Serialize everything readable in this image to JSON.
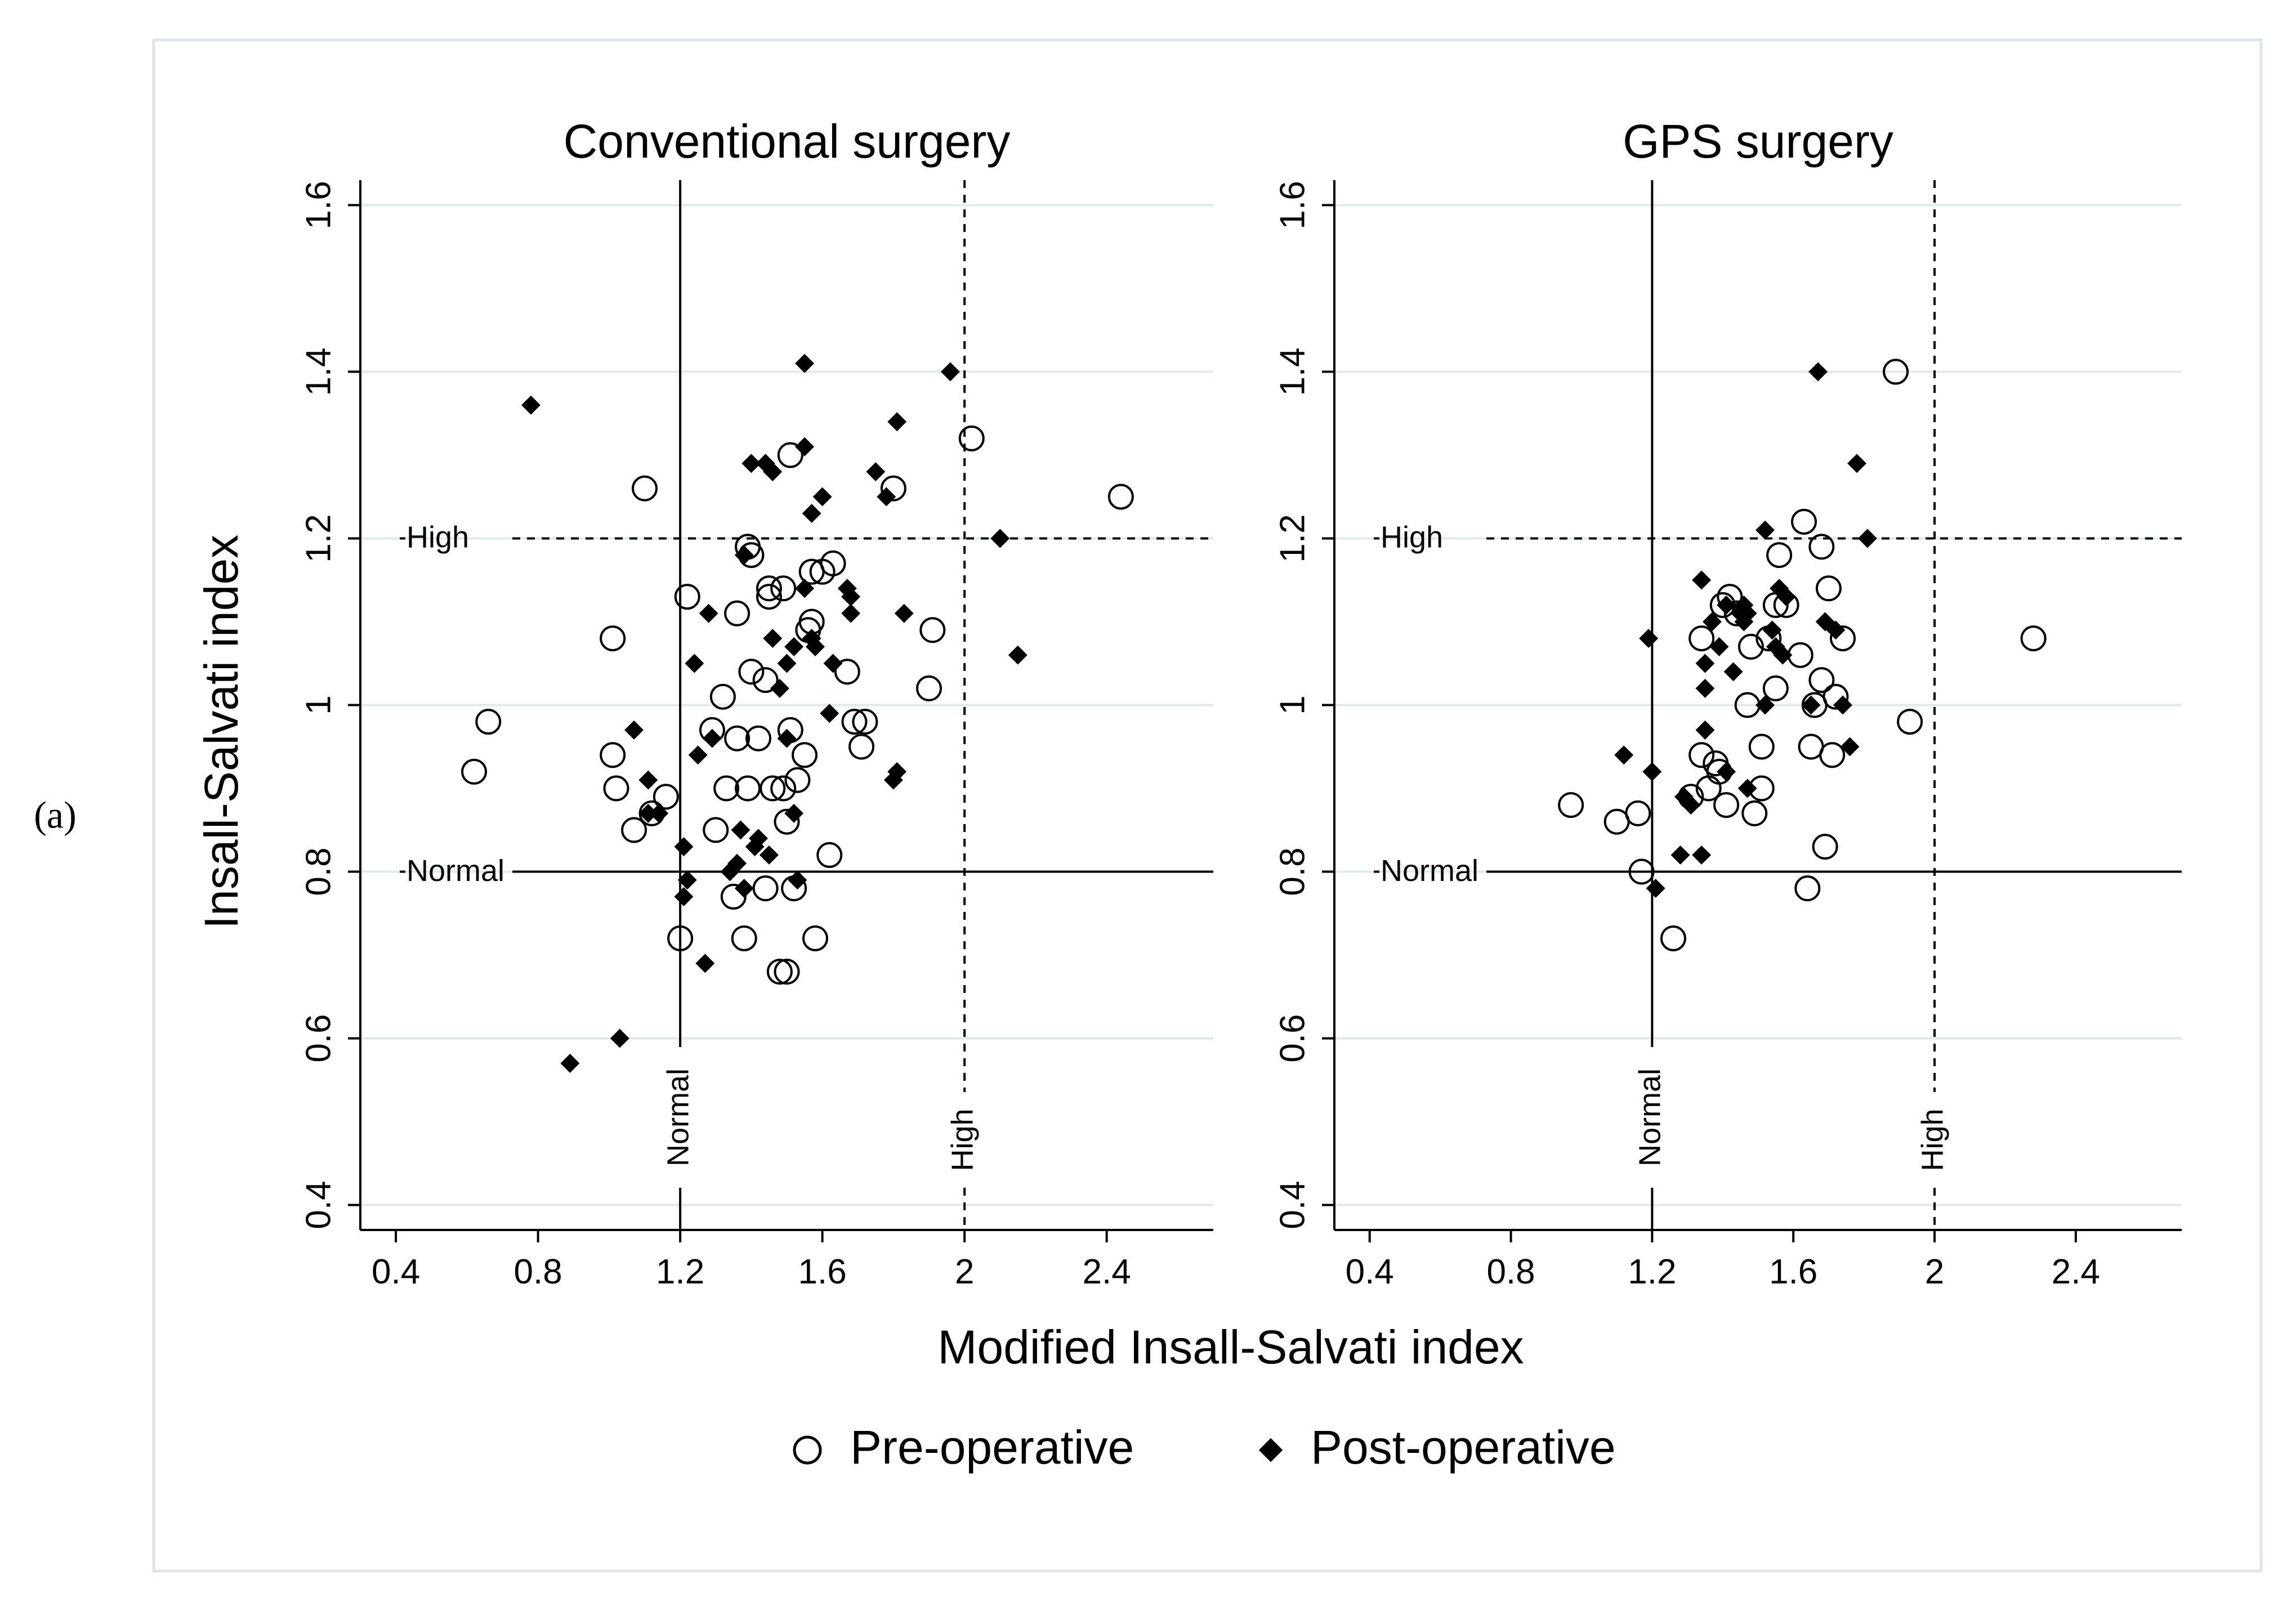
{
  "figure": {
    "panel_label": "(a)",
    "x_axis_title": "Modified Insall-Salvati index",
    "y_axis_title": "Insall-Salvati index",
    "legend": {
      "placement": "bottom-center",
      "pre_label": "Pre-operative",
      "post_label": "Post-operative"
    },
    "colors": {
      "marker": "#000000",
      "grid": "#dfeaea",
      "frame": "#dbe5ea",
      "background": "#ffffff"
    }
  },
  "chart_data": [
    {
      "type": "scatter",
      "title": "Conventional surgery",
      "xlabel": "Modified Insall-Salvati index",
      "ylabel": "Insall-Salvati index",
      "xlim": [
        0.3,
        2.7
      ],
      "ylim": [
        0.37,
        1.63
      ],
      "x_ticks": [
        "0.4",
        "0.8",
        "1.2",
        "1.6",
        "2",
        "2.4"
      ],
      "y_ticks": [
        "0.4",
        "0.6",
        "0.8",
        "1",
        "1.2",
        "1.4",
        "1.6"
      ],
      "grid": "horizontal",
      "reference_lines": [
        {
          "axis": "y",
          "value": 0.8,
          "style": "solid",
          "label": "Normal"
        },
        {
          "axis": "y",
          "value": 1.2,
          "style": "dashed",
          "label": "High"
        },
        {
          "axis": "x",
          "value": 1.2,
          "style": "solid",
          "label": "Normal"
        },
        {
          "axis": "x",
          "value": 2.0,
          "style": "dashed",
          "label": "High"
        }
      ],
      "series": [
        {
          "name": "Pre-operative",
          "marker": "open-circle",
          "points": [
            [
              0.62,
              0.92
            ],
            [
              0.66,
              0.98
            ],
            [
              1.01,
              1.08
            ],
            [
              1.01,
              0.94
            ],
            [
              1.02,
              0.9
            ],
            [
              1.07,
              0.85
            ],
            [
              1.1,
              1.26
            ],
            [
              1.12,
              0.87
            ],
            [
              1.16,
              0.89
            ],
            [
              1.2,
              0.72
            ],
            [
              1.22,
              1.13
            ],
            [
              1.29,
              0.97
            ],
            [
              1.3,
              0.85
            ],
            [
              1.32,
              1.01
            ],
            [
              1.33,
              0.9
            ],
            [
              1.35,
              0.77
            ],
            [
              1.36,
              0.96
            ],
            [
              1.36,
              1.11
            ],
            [
              1.38,
              0.72
            ],
            [
              1.39,
              0.9
            ],
            [
              1.39,
              1.19
            ],
            [
              1.4,
              1.18
            ],
            [
              1.4,
              1.04
            ],
            [
              1.42,
              0.96
            ],
            [
              1.44,
              0.78
            ],
            [
              1.44,
              1.03
            ],
            [
              1.45,
              1.13
            ],
            [
              1.45,
              1.14
            ],
            [
              1.46,
              0.9
            ],
            [
              1.48,
              0.68
            ],
            [
              1.49,
              0.9
            ],
            [
              1.49,
              1.14
            ],
            [
              1.5,
              0.86
            ],
            [
              1.5,
              0.68
            ],
            [
              1.51,
              0.97
            ],
            [
              1.51,
              1.3
            ],
            [
              1.52,
              0.78
            ],
            [
              1.53,
              0.91
            ],
            [
              1.55,
              0.94
            ],
            [
              1.56,
              1.09
            ],
            [
              1.57,
              1.16
            ],
            [
              1.57,
              1.1
            ],
            [
              1.58,
              0.72
            ],
            [
              1.6,
              1.16
            ],
            [
              1.62,
              0.82
            ],
            [
              1.63,
              1.17
            ],
            [
              1.67,
              1.04
            ],
            [
              1.69,
              0.98
            ],
            [
              1.71,
              0.95
            ],
            [
              1.72,
              0.98
            ],
            [
              1.8,
              1.26
            ],
            [
              1.9,
              1.02
            ],
            [
              1.91,
              1.09
            ],
            [
              2.02,
              1.32
            ],
            [
              2.44,
              1.25
            ]
          ]
        },
        {
          "name": "Post-operative",
          "marker": "filled-diamond",
          "points": [
            [
              0.78,
              1.36
            ],
            [
              0.89,
              0.57
            ],
            [
              1.03,
              0.6
            ],
            [
              1.07,
              0.97
            ],
            [
              1.11,
              0.91
            ],
            [
              1.11,
              0.87
            ],
            [
              1.14,
              0.87
            ],
            [
              1.21,
              0.83
            ],
            [
              1.21,
              0.77
            ],
            [
              1.22,
              0.79
            ],
            [
              1.24,
              1.05
            ],
            [
              1.25,
              0.94
            ],
            [
              1.27,
              0.69
            ],
            [
              1.28,
              1.11
            ],
            [
              1.29,
              0.96
            ],
            [
              1.34,
              0.8
            ],
            [
              1.36,
              0.81
            ],
            [
              1.37,
              0.85
            ],
            [
              1.38,
              0.78
            ],
            [
              1.38,
              1.18
            ],
            [
              1.4,
              1.29
            ],
            [
              1.41,
              0.83
            ],
            [
              1.42,
              0.84
            ],
            [
              1.44,
              1.29
            ],
            [
              1.45,
              0.82
            ],
            [
              1.46,
              1.28
            ],
            [
              1.46,
              1.08
            ],
            [
              1.48,
              1.02
            ],
            [
              1.5,
              1.05
            ],
            [
              1.5,
              0.96
            ],
            [
              1.52,
              0.87
            ],
            [
              1.52,
              1.07
            ],
            [
              1.53,
              0.79
            ],
            [
              1.55,
              1.41
            ],
            [
              1.55,
              1.31
            ],
            [
              1.55,
              1.14
            ],
            [
              1.57,
              1.23
            ],
            [
              1.57,
              1.08
            ],
            [
              1.58,
              1.07
            ],
            [
              1.6,
              1.25
            ],
            [
              1.62,
              0.99
            ],
            [
              1.63,
              1.05
            ],
            [
              1.67,
              1.14
            ],
            [
              1.68,
              1.13
            ],
            [
              1.68,
              1.11
            ],
            [
              1.75,
              1.28
            ],
            [
              1.78,
              1.25
            ],
            [
              1.8,
              0.91
            ],
            [
              1.81,
              0.92
            ],
            [
              1.81,
              1.34
            ],
            [
              1.83,
              1.11
            ],
            [
              1.96,
              1.4
            ],
            [
              2.1,
              1.2
            ],
            [
              2.15,
              1.06
            ]
          ]
        }
      ]
    },
    {
      "type": "scatter",
      "title": "GPS surgery",
      "xlabel": "Modified Insall-Salvati index",
      "ylabel": "Insall-Salvati index",
      "xlim": [
        0.3,
        2.7
      ],
      "ylim": [
        0.37,
        1.63
      ],
      "x_ticks": [
        "0.4",
        "0.8",
        "1.2",
        "1.6",
        "2",
        "2.4"
      ],
      "y_ticks": [
        "0.4",
        "0.6",
        "0.8",
        "1",
        "1.2",
        "1.4",
        "1.6"
      ],
      "grid": "horizontal",
      "reference_lines": [
        {
          "axis": "y",
          "value": 0.8,
          "style": "solid",
          "label": "Normal"
        },
        {
          "axis": "y",
          "value": 1.2,
          "style": "dashed",
          "label": "High"
        },
        {
          "axis": "x",
          "value": 1.2,
          "style": "solid",
          "label": "Normal"
        },
        {
          "axis": "x",
          "value": 2.0,
          "style": "dashed",
          "label": "High"
        }
      ],
      "series": [
        {
          "name": "Pre-operative",
          "marker": "open-circle",
          "points": [
            [
              0.97,
              0.88
            ],
            [
              1.1,
              0.86
            ],
            [
              1.16,
              0.87
            ],
            [
              1.17,
              0.8
            ],
            [
              1.26,
              0.72
            ],
            [
              1.31,
              0.89
            ],
            [
              1.34,
              0.94
            ],
            [
              1.34,
              1.08
            ],
            [
              1.36,
              0.9
            ],
            [
              1.38,
              0.93
            ],
            [
              1.39,
              0.92
            ],
            [
              1.4,
              1.12
            ],
            [
              1.41,
              0.88
            ],
            [
              1.42,
              1.13
            ],
            [
              1.44,
              1.11
            ],
            [
              1.47,
              1.0
            ],
            [
              1.48,
              1.07
            ],
            [
              1.49,
              0.87
            ],
            [
              1.51,
              0.9
            ],
            [
              1.51,
              0.95
            ],
            [
              1.53,
              1.08
            ],
            [
              1.55,
              1.12
            ],
            [
              1.55,
              1.02
            ],
            [
              1.56,
              1.18
            ],
            [
              1.58,
              1.12
            ],
            [
              1.62,
              1.06
            ],
            [
              1.63,
              1.22
            ],
            [
              1.64,
              0.78
            ],
            [
              1.65,
              0.95
            ],
            [
              1.66,
              1.0
            ],
            [
              1.68,
              1.19
            ],
            [
              1.68,
              1.03
            ],
            [
              1.69,
              0.83
            ],
            [
              1.7,
              1.14
            ],
            [
              1.71,
              0.94
            ],
            [
              1.72,
              1.01
            ],
            [
              1.74,
              1.08
            ],
            [
              1.89,
              1.4
            ],
            [
              1.93,
              0.98
            ],
            [
              2.28,
              1.08
            ]
          ]
        },
        {
          "name": "Post-operative",
          "marker": "filled-diamond",
          "points": [
            [
              1.12,
              0.94
            ],
            [
              1.19,
              1.08
            ],
            [
              1.2,
              0.92
            ],
            [
              1.21,
              0.78
            ],
            [
              1.28,
              0.82
            ],
            [
              1.29,
              0.89
            ],
            [
              1.31,
              0.88
            ],
            [
              1.34,
              0.82
            ],
            [
              1.34,
              1.15
            ],
            [
              1.35,
              1.05
            ],
            [
              1.35,
              1.02
            ],
            [
              1.35,
              0.97
            ],
            [
              1.37,
              1.1
            ],
            [
              1.39,
              1.07
            ],
            [
              1.41,
              1.12
            ],
            [
              1.41,
              0.92
            ],
            [
              1.43,
              1.04
            ],
            [
              1.45,
              1.11
            ],
            [
              1.46,
              1.12
            ],
            [
              1.46,
              1.1
            ],
            [
              1.47,
              1.11
            ],
            [
              1.47,
              0.9
            ],
            [
              1.52,
              1.21
            ],
            [
              1.52,
              1.0
            ],
            [
              1.54,
              1.09
            ],
            [
              1.55,
              1.07
            ],
            [
              1.56,
              1.14
            ],
            [
              1.57,
              1.06
            ],
            [
              1.58,
              1.13
            ],
            [
              1.65,
              1.0
            ],
            [
              1.67,
              1.4
            ],
            [
              1.69,
              1.1
            ],
            [
              1.72,
              1.09
            ],
            [
              1.74,
              1.0
            ],
            [
              1.76,
              0.95
            ],
            [
              1.78,
              1.29
            ],
            [
              1.81,
              1.2
            ]
          ]
        }
      ]
    }
  ]
}
